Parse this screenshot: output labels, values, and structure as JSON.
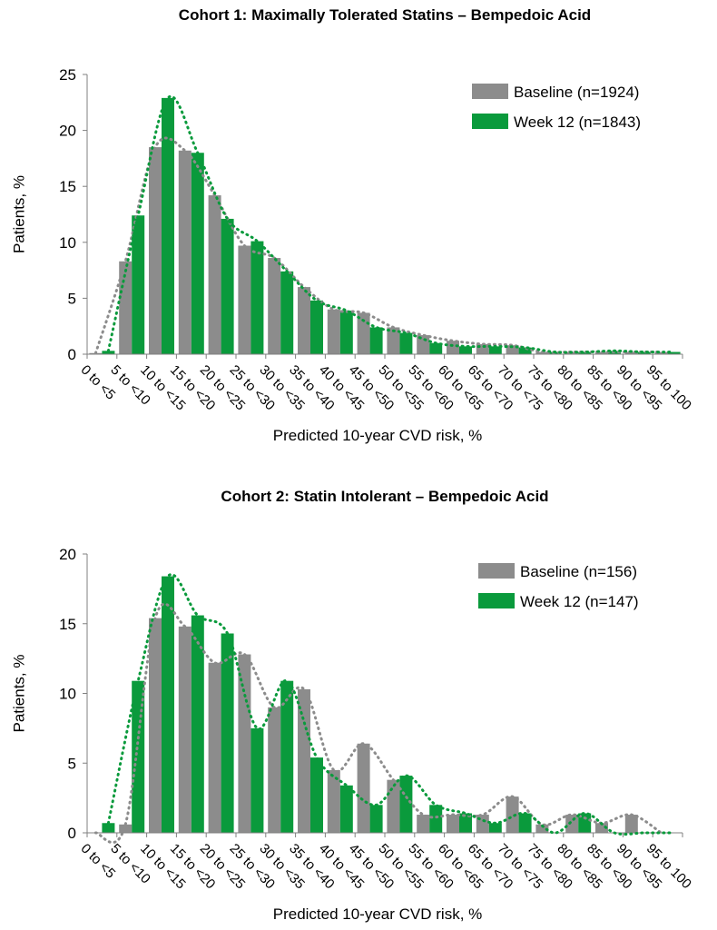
{
  "colors": {
    "baseline": "#8c8c8c",
    "week12": "#0a9a3c",
    "axis": "#808080",
    "text": "#000000"
  },
  "chart_data": [
    {
      "type": "bar",
      "title": "Cohort 1: Maximally Tolerated Statins – Bempedoic Acid",
      "xlabel": "Predicted 10-year CVD risk, %",
      "ylabel": "Patients, %",
      "ylim": [
        0,
        25
      ],
      "yticks": [
        "0",
        "5",
        "10",
        "15",
        "20",
        "25"
      ],
      "categories": [
        "0 to <5",
        "5 to <10",
        "10 to <15",
        "15 to <20",
        "20 to <25",
        "25 to <30",
        "30 to <35",
        "35 to <40",
        "40 to <45",
        "45 to <50",
        "50 to <55",
        "55 to <60",
        "60 to <65",
        "65 to <70",
        "70 to <75",
        "75 to <80",
        "80 to <85",
        "85 to <90",
        "90 to <95",
        "95 to 100"
      ],
      "series": [
        {
          "name": "Baseline (n=1924)",
          "values": [
            0.1,
            8.3,
            18.5,
            18.2,
            14.2,
            9.7,
            8.6,
            6.0,
            4.0,
            3.7,
            2.4,
            1.7,
            1.2,
            0.9,
            0.8,
            0.2,
            0.2,
            0.2,
            0.2,
            0.2
          ]
        },
        {
          "name": "Week 12 (n=1843)",
          "values": [
            0.3,
            12.4,
            22.9,
            18.0,
            12.1,
            10.1,
            7.4,
            4.8,
            3.9,
            2.4,
            1.9,
            1.0,
            0.7,
            0.7,
            0.6,
            0.2,
            0.2,
            0.3,
            0.2,
            0.2
          ]
        }
      ]
    },
    {
      "type": "bar",
      "title": "Cohort 2: Statin Intolerant – Bempedoic Acid",
      "xlabel": "Predicted 10-year CVD risk, %",
      "ylabel": "Patients, %",
      "ylim": [
        0,
        20
      ],
      "yticks": [
        "0",
        "5",
        "10",
        "15",
        "20"
      ],
      "categories": [
        "0 to <5",
        "5 to <10",
        "10 to <15",
        "15 to <20",
        "20 to <25",
        "25 to <30",
        "30 to <35",
        "35 to <40",
        "40 to <45",
        "45 to <50",
        "50 to <55",
        "55 to <60",
        "60 to <65",
        "65 to <70",
        "70 to <75",
        "75 to <80",
        "80 to <85",
        "85 to <90",
        "90 to <95",
        "95 to 100"
      ],
      "series": [
        {
          "name": "Baseline (n=156)",
          "values": [
            0.0,
            0.6,
            15.4,
            14.8,
            12.2,
            12.8,
            9.0,
            10.3,
            4.5,
            6.4,
            3.8,
            1.3,
            1.3,
            1.3,
            2.6,
            0.6,
            1.3,
            0.7,
            1.3,
            0.0
          ]
        },
        {
          "name": "Week 12 (n=147)",
          "values": [
            0.7,
            10.9,
            18.4,
            15.6,
            14.3,
            7.5,
            10.9,
            5.4,
            3.4,
            2.0,
            4.1,
            2.0,
            1.4,
            0.7,
            1.4,
            0.0,
            1.4,
            0.0,
            0.0,
            0.0
          ]
        }
      ]
    }
  ]
}
